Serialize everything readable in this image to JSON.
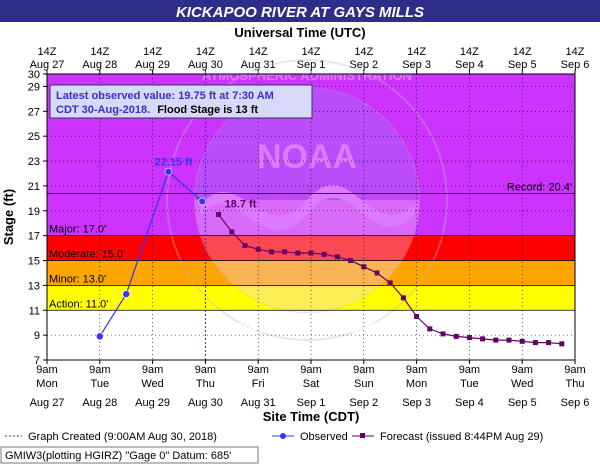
{
  "chart_data": {
    "type": "line",
    "title": "KICKAPOO RIVER AT GAYS MILLS",
    "top_axis_label": "Universal Time (UTC)",
    "xlabel": "Site Time (CDT)",
    "ylabel": "Stage (ft)",
    "ylim": [
      7,
      30
    ],
    "y_ticks": [
      "7",
      "9",
      "11",
      "13",
      "15",
      "17",
      "19",
      "21",
      "23",
      "25",
      "27",
      "29",
      "30"
    ],
    "x_days": 10,
    "top_ticks": [
      {
        "l1": "14Z",
        "l2": "Aug 27"
      },
      {
        "l1": "14Z",
        "l2": "Aug 28"
      },
      {
        "l1": "14Z",
        "l2": "Aug 29"
      },
      {
        "l1": "14Z",
        "l2": "Aug 30"
      },
      {
        "l1": "14Z",
        "l2": "Aug 31"
      },
      {
        "l1": "14Z",
        "l2": "Sep 1"
      },
      {
        "l1": "14Z",
        "l2": "Sep 2"
      },
      {
        "l1": "14Z",
        "l2": "Sep 3"
      },
      {
        "l1": "14Z",
        "l2": "Sep 4"
      },
      {
        "l1": "14Z",
        "l2": "Sep 5"
      },
      {
        "l1": "14Z",
        "l2": "Sep 6"
      }
    ],
    "bottom_ticks": [
      {
        "l1": "9am",
        "l2": "Mon",
        "l3": "Aug 27"
      },
      {
        "l1": "9am",
        "l2": "Tue",
        "l3": "Aug 28"
      },
      {
        "l1": "9am",
        "l2": "Wed",
        "l3": "Aug 29"
      },
      {
        "l1": "9am",
        "l2": "Thu",
        "l3": "Aug 30"
      },
      {
        "l1": "9am",
        "l2": "Fri",
        "l3": "Aug 31"
      },
      {
        "l1": "9am",
        "l2": "Sat",
        "l3": "Sep 1"
      },
      {
        "l1": "9am",
        "l2": "Sun",
        "l3": "Sep 2"
      },
      {
        "l1": "9am",
        "l2": "Mon",
        "l3": "Sep 3"
      },
      {
        "l1": "9am",
        "l2": "Tue",
        "l3": "Sep 4"
      },
      {
        "l1": "9am",
        "l2": "Wed",
        "l3": "Sep 5"
      },
      {
        "l1": "9am",
        "l2": "Thu",
        "l3": "Sep 6"
      }
    ],
    "flood_bands": [
      {
        "name": "Action",
        "label": "Action: 11.0'",
        "from": 11,
        "to": 13,
        "color": "#ffff00"
      },
      {
        "name": "Minor",
        "label": "Minor: 13.0'",
        "from": 13,
        "to": 15,
        "color": "#ffa500"
      },
      {
        "name": "Moderate",
        "label": "Moderate: 15.0'",
        "from": 15,
        "to": 17,
        "color": "#ff0000"
      },
      {
        "name": "Major",
        "label": "Major: 17.0'",
        "from": 17,
        "to": 30,
        "color": "#cc33ff"
      }
    ],
    "record": {
      "label": "Record: 20.4'",
      "value": 20.4
    },
    "graph_created_day": 3.0,
    "series": [
      {
        "name": "Observed",
        "color": "#3333ff",
        "points": [
          {
            "day": 1.0,
            "stage": 8.9
          },
          {
            "day": 1.5,
            "stage": 12.3
          },
          {
            "day": 2.3,
            "stage": 22.15
          },
          {
            "day": 2.94,
            "stage": 19.75
          }
        ]
      },
      {
        "name": "Forecast (issued 8:44PM Aug 29)",
        "color": "#660066",
        "points": [
          {
            "day": 3.25,
            "stage": 18.7
          },
          {
            "day": 3.5,
            "stage": 17.3
          },
          {
            "day": 3.75,
            "stage": 16.2
          },
          {
            "day": 4.0,
            "stage": 15.9
          },
          {
            "day": 4.25,
            "stage": 15.7
          },
          {
            "day": 4.5,
            "stage": 15.7
          },
          {
            "day": 4.75,
            "stage": 15.6
          },
          {
            "day": 5.0,
            "stage": 15.6
          },
          {
            "day": 5.25,
            "stage": 15.5
          },
          {
            "day": 5.5,
            "stage": 15.3
          },
          {
            "day": 5.75,
            "stage": 15.0
          },
          {
            "day": 6.0,
            "stage": 14.5
          },
          {
            "day": 6.25,
            "stage": 14.0
          },
          {
            "day": 6.5,
            "stage": 13.2
          },
          {
            "day": 6.75,
            "stage": 12.0
          },
          {
            "day": 7.0,
            "stage": 10.5
          },
          {
            "day": 7.25,
            "stage": 9.5
          },
          {
            "day": 7.5,
            "stage": 9.1
          },
          {
            "day": 7.75,
            "stage": 8.9
          },
          {
            "day": 8.0,
            "stage": 8.8
          },
          {
            "day": 8.25,
            "stage": 8.7
          },
          {
            "day": 8.5,
            "stage": 8.6
          },
          {
            "day": 8.75,
            "stage": 8.6
          },
          {
            "day": 9.0,
            "stage": 8.5
          },
          {
            "day": 9.25,
            "stage": 8.4
          },
          {
            "day": 9.5,
            "stage": 8.4
          },
          {
            "day": 9.75,
            "stage": 8.3
          }
        ]
      }
    ],
    "annotations": {
      "peak_label": "22.15 ft",
      "forecast_start_label": "18.7 ft"
    },
    "info_box": {
      "line1": "Latest observed value: 19.75 ft at 7:30 AM",
      "line2": "CDT 30-Aug-2018.",
      "line2b": "Flood Stage is 13 ft"
    },
    "legend": {
      "created": "Graph Created (9:00AM Aug 30, 2018)",
      "observed": "Observed",
      "forecast": "Forecast (issued 8:44PM Aug 29)"
    },
    "footer": "GMIW3(plotting HGIRZ) \"Gage 0\" Datum:  685'",
    "watermark": "NATIONAL OCEANIC AND ATMOSPHERIC ADMINISTRATION · U.S. DEPARTMENT OF COMMERCE · NOAA",
    "colors": {
      "title_bg": "#2e2e8a",
      "title_text": "#ffffff",
      "observed": "#3333ff",
      "forecast": "#660066"
    }
  }
}
